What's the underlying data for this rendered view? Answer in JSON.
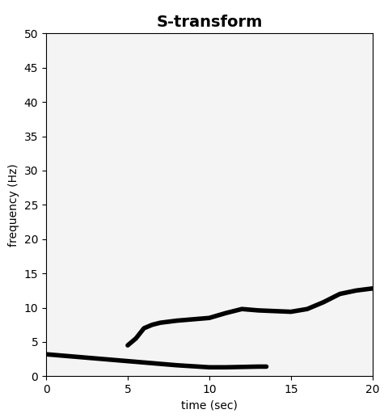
{
  "chart_data": {
    "type": "line",
    "title": "S-transform",
    "x_label": "time (sec)",
    "y_label": "frequency (Hz)",
    "series": [
      {
        "color": "#000000",
        "line_style": "solid",
        "x": [
          0,
          1,
          2,
          3,
          4,
          5,
          6,
          7,
          8,
          9,
          10,
          11,
          12,
          13,
          13.5
        ],
        "values": [
          3.2,
          3.0,
          2.8,
          2.6,
          2.4,
          2.2,
          2.0,
          1.8,
          1.6,
          1.45,
          1.3,
          1.3,
          1.35,
          1.4,
          1.4
        ]
      },
      {
        "color": "#000000",
        "line_style": "solid",
        "x": [
          5,
          5.5,
          6,
          6.5,
          7,
          8,
          9,
          10,
          11,
          12,
          13,
          14,
          15,
          16,
          17,
          18,
          19,
          20
        ],
        "values": [
          4.5,
          5.5,
          7.0,
          7.5,
          7.8,
          8.1,
          8.3,
          8.5,
          9.2,
          9.8,
          9.6,
          9.5,
          9.4,
          9.8,
          10.8,
          12.0,
          12.5,
          12.8
        ]
      }
    ],
    "xlim": [
      0,
      20
    ],
    "xticks": [
      0,
      5,
      10,
      15,
      20
    ],
    "ylim": [
      0,
      50
    ],
    "yticks": [
      0,
      5,
      10,
      15,
      20,
      25,
      30,
      35,
      40,
      45,
      50
    ],
    "grid": false
  }
}
